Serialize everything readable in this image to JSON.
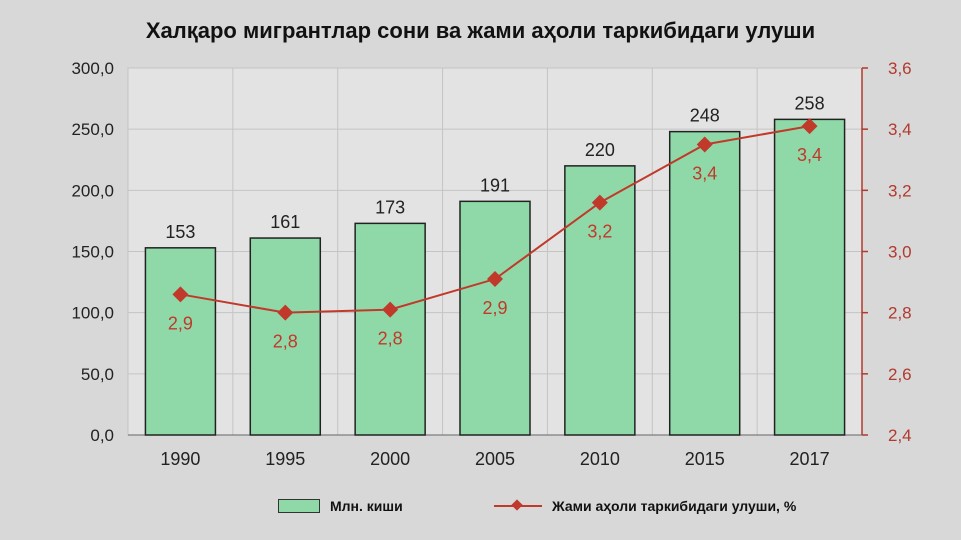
{
  "title": "Халқаро мигрантлар сони ва жами аҳоли таркибидаги улуши",
  "colors": {
    "bar_fill": "#8fd9a8",
    "bar_stroke": "#222222",
    "line": "#c0392b",
    "left_axis_text": "#222222",
    "right_axis": "#b03a2e"
  },
  "legend": {
    "bars_label": "Млн. киши",
    "line_label": "Жами аҳоли таркибидаги улуши, %",
    "placement": "bottom"
  },
  "chart_data": {
    "type": "bar",
    "combo": "bar-line",
    "categories": [
      "1990",
      "1995",
      "2000",
      "2005",
      "2010",
      "2015",
      "2017"
    ],
    "series": [
      {
        "name": "Млн. киши",
        "type": "bar",
        "axis": "left",
        "values": [
          153,
          161,
          173,
          191,
          220,
          248,
          258
        ],
        "data_labels": [
          "153",
          "161",
          "173",
          "191",
          "220",
          "248",
          "258"
        ]
      },
      {
        "name": "Жами аҳоли таркибидаги улуши, %",
        "type": "line",
        "axis": "right",
        "values": [
          2.86,
          2.8,
          2.81,
          2.91,
          3.16,
          3.35,
          3.41
        ],
        "data_labels": [
          "2,9",
          "2,8",
          "2,8",
          "2,9",
          "3,2",
          "3,4",
          "3,4"
        ]
      }
    ],
    "left_axis": {
      "ylim": [
        0,
        300
      ],
      "ticks": [
        0,
        50,
        100,
        150,
        200,
        250,
        300
      ],
      "tick_labels": [
        "0,0",
        "50,0",
        "100,0",
        "150,0",
        "200,0",
        "250,0",
        "300,0"
      ]
    },
    "right_axis": {
      "ylim": [
        2.4,
        3.6
      ],
      "ticks": [
        2.4,
        2.6,
        2.8,
        3.0,
        3.2,
        3.4,
        3.6
      ],
      "tick_labels": [
        "2,4",
        "2,6",
        "2,8",
        "3,0",
        "3,2",
        "3,4",
        "3,6"
      ]
    },
    "grid": true
  }
}
